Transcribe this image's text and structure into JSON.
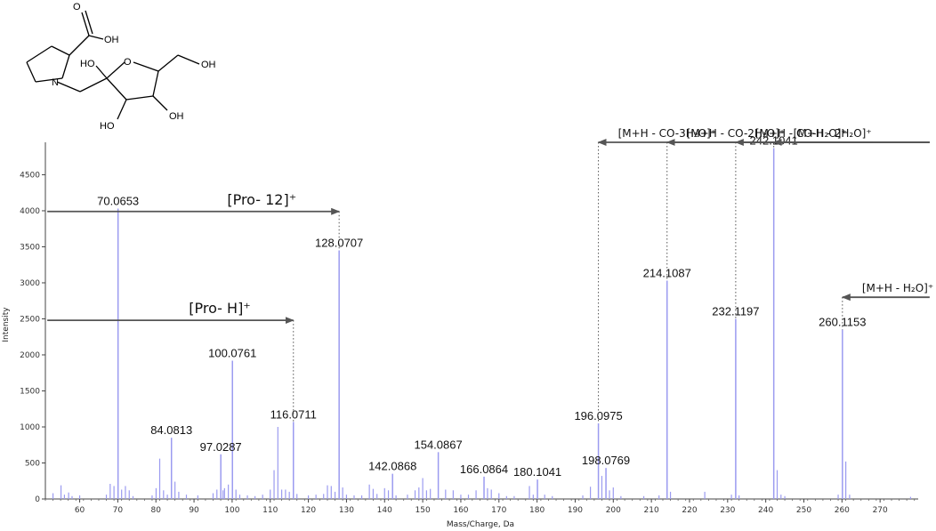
{
  "chart_data": {
    "type": "bar",
    "xlabel": "Mass/Charge, Da",
    "ylabel": "Intensity",
    "xlim": [
      51,
      280
    ],
    "ylim": [
      0,
      4950
    ],
    "x_ticks": [
      60,
      70,
      80,
      90,
      100,
      110,
      120,
      130,
      140,
      150,
      160,
      170,
      180,
      190,
      200,
      210,
      220,
      230,
      240,
      250,
      260,
      270
    ],
    "y_ticks": [
      0,
      500,
      1000,
      1500,
      2000,
      2500,
      3000,
      3500,
      4000,
      4500
    ],
    "bar_color": "#9b9bf0",
    "labeled_peaks": [
      {
        "mz": 70.0653,
        "intensity": 4030,
        "label": "70.0653"
      },
      {
        "mz": 128.0707,
        "intensity": 3450,
        "label": "128.0707"
      },
      {
        "mz": 100.0761,
        "intensity": 1920,
        "label": "100.0761"
      },
      {
        "mz": 116.0711,
        "intensity": 1070,
        "label": "116.0711"
      },
      {
        "mz": 84.0813,
        "intensity": 850,
        "label": "84.0813"
      },
      {
        "mz": 97.0287,
        "intensity": 620,
        "label": "97.0287"
      },
      {
        "mz": 142.0868,
        "intensity": 350,
        "label": "142.0868"
      },
      {
        "mz": 154.0867,
        "intensity": 650,
        "label": "154.0867"
      },
      {
        "mz": 166.0864,
        "intensity": 310,
        "label": "166.0864"
      },
      {
        "mz": 180.1041,
        "intensity": 270,
        "label": "180.1041"
      },
      {
        "mz": 196.0975,
        "intensity": 1050,
        "label": "196.0975"
      },
      {
        "mz": 198.0769,
        "intensity": 430,
        "label": "198.0769"
      },
      {
        "mz": 214.1087,
        "intensity": 3030,
        "label": "214.1087"
      },
      {
        "mz": 232.1197,
        "intensity": 2500,
        "label": "232.1197"
      },
      {
        "mz": 242.1041,
        "intensity": 4870,
        "label": "242.1041"
      },
      {
        "mz": 260.1153,
        "intensity": 2350,
        "label": "260.1153"
      }
    ],
    "minor_peaks": [
      {
        "mz": 53.0,
        "intensity": 80
      },
      {
        "mz": 55.1,
        "intensity": 190
      },
      {
        "mz": 56.0,
        "intensity": 60
      },
      {
        "mz": 57.1,
        "intensity": 90
      },
      {
        "mz": 58.0,
        "intensity": 40
      },
      {
        "mz": 60.0,
        "intensity": 50
      },
      {
        "mz": 67.0,
        "intensity": 60
      },
      {
        "mz": 68.0,
        "intensity": 210
      },
      {
        "mz": 69.0,
        "intensity": 180
      },
      {
        "mz": 71.0,
        "intensity": 130
      },
      {
        "mz": 72.0,
        "intensity": 180
      },
      {
        "mz": 73.0,
        "intensity": 120
      },
      {
        "mz": 74.0,
        "intensity": 40
      },
      {
        "mz": 79.0,
        "intensity": 50
      },
      {
        "mz": 80.05,
        "intensity": 150
      },
      {
        "mz": 81.0,
        "intensity": 560
      },
      {
        "mz": 82.0,
        "intensity": 120
      },
      {
        "mz": 83.0,
        "intensity": 60
      },
      {
        "mz": 85.0,
        "intensity": 240
      },
      {
        "mz": 86.0,
        "intensity": 100
      },
      {
        "mz": 88.0,
        "intensity": 60
      },
      {
        "mz": 91.0,
        "intensity": 50
      },
      {
        "mz": 95.0,
        "intensity": 80
      },
      {
        "mz": 96.0,
        "intensity": 130
      },
      {
        "mz": 97.6,
        "intensity": 120
      },
      {
        "mz": 98.0,
        "intensity": 150
      },
      {
        "mz": 99.0,
        "intensity": 200
      },
      {
        "mz": 101.0,
        "intensity": 130
      },
      {
        "mz": 102.0,
        "intensity": 60
      },
      {
        "mz": 104.0,
        "intensity": 50
      },
      {
        "mz": 106.0,
        "intensity": 40
      },
      {
        "mz": 108.0,
        "intensity": 60
      },
      {
        "mz": 110.0,
        "intensity": 130
      },
      {
        "mz": 111.0,
        "intensity": 400
      },
      {
        "mz": 112.0,
        "intensity": 1000
      },
      {
        "mz": 113.0,
        "intensity": 130
      },
      {
        "mz": 114.0,
        "intensity": 130
      },
      {
        "mz": 115.0,
        "intensity": 100
      },
      {
        "mz": 117.0,
        "intensity": 70
      },
      {
        "mz": 120.0,
        "intensity": 50
      },
      {
        "mz": 122.0,
        "intensity": 60
      },
      {
        "mz": 124.0,
        "intensity": 70
      },
      {
        "mz": 125.0,
        "intensity": 190
      },
      {
        "mz": 126.0,
        "intensity": 180
      },
      {
        "mz": 127.0,
        "intensity": 100
      },
      {
        "mz": 129.0,
        "intensity": 160
      },
      {
        "mz": 130.0,
        "intensity": 60
      },
      {
        "mz": 132.0,
        "intensity": 50
      },
      {
        "mz": 134.0,
        "intensity": 50
      },
      {
        "mz": 136.0,
        "intensity": 200
      },
      {
        "mz": 137.0,
        "intensity": 140
      },
      {
        "mz": 138.0,
        "intensity": 70
      },
      {
        "mz": 140.0,
        "intensity": 150
      },
      {
        "mz": 141.0,
        "intensity": 120
      },
      {
        "mz": 143.0,
        "intensity": 50
      },
      {
        "mz": 146.0,
        "intensity": 60
      },
      {
        "mz": 148.0,
        "intensity": 120
      },
      {
        "mz": 149.0,
        "intensity": 160
      },
      {
        "mz": 150.0,
        "intensity": 290
      },
      {
        "mz": 151.0,
        "intensity": 120
      },
      {
        "mz": 152.0,
        "intensity": 140
      },
      {
        "mz": 156.0,
        "intensity": 130
      },
      {
        "mz": 158.0,
        "intensity": 120
      },
      {
        "mz": 160.0,
        "intensity": 60
      },
      {
        "mz": 162.0,
        "intensity": 60
      },
      {
        "mz": 164.0,
        "intensity": 120
      },
      {
        "mz": 167.0,
        "intensity": 150
      },
      {
        "mz": 168.0,
        "intensity": 130
      },
      {
        "mz": 170.0,
        "intensity": 80
      },
      {
        "mz": 172.0,
        "intensity": 40
      },
      {
        "mz": 174.0,
        "intensity": 40
      },
      {
        "mz": 178.0,
        "intensity": 180
      },
      {
        "mz": 179.0,
        "intensity": 60
      },
      {
        "mz": 182.0,
        "intensity": 60
      },
      {
        "mz": 184.0,
        "intensity": 40
      },
      {
        "mz": 192.0,
        "intensity": 50
      },
      {
        "mz": 194.0,
        "intensity": 170
      },
      {
        "mz": 197.0,
        "intensity": 320
      },
      {
        "mz": 199.0,
        "intensity": 120
      },
      {
        "mz": 200.0,
        "intensity": 160
      },
      {
        "mz": 202.0,
        "intensity": 40
      },
      {
        "mz": 208.0,
        "intensity": 40
      },
      {
        "mz": 212.0,
        "intensity": 50
      },
      {
        "mz": 215.0,
        "intensity": 100
      },
      {
        "mz": 224.0,
        "intensity": 100
      },
      {
        "mz": 231.0,
        "intensity": 60
      },
      {
        "mz": 233.0,
        "intensity": 50
      },
      {
        "mz": 243.0,
        "intensity": 400
      },
      {
        "mz": 244.0,
        "intensity": 60
      },
      {
        "mz": 245.0,
        "intensity": 40
      },
      {
        "mz": 259.0,
        "intensity": 60
      },
      {
        "mz": 261.0,
        "intensity": 520
      },
      {
        "mz": 262.0,
        "intensity": 60
      },
      {
        "mz": 278.0,
        "intensity": 30
      }
    ],
    "annotations": [
      {
        "label": "[M+H - CO-3H₂O]⁺",
        "peak_mz": 196.0975,
        "arrow_from_mz": 268,
        "arrow_intensity": 4950,
        "label_align": "start"
      },
      {
        "label": "[M+H - CO-2H₂O]⁺",
        "peak_mz": 214.1087,
        "arrow_from_mz": 283,
        "arrow_intensity": 4950,
        "label_align": "start"
      },
      {
        "label": "[M+H - CO-H₂O]⁺",
        "peak_mz": 232.1197,
        "arrow_from_mz": 283,
        "arrow_intensity": 4950,
        "label_align": "start"
      },
      {
        "label": "[M+H - 2H₂O]⁺",
        "peak_mz": 242.1041,
        "arrow_from_mz": 283,
        "arrow_intensity": 4950,
        "label_align": "start"
      },
      {
        "label": "[M+H - H₂O]⁺",
        "peak_mz": 260.1153,
        "arrow_from_mz": 283,
        "arrow_intensity": 2800,
        "label_align": "start"
      },
      {
        "label": "[Pro- 12]⁺",
        "peak_mz": 128.0707,
        "arrow_from_mz": 51.5,
        "arrow_intensity": 3990,
        "label_align": "end"
      },
      {
        "label": "[Pro- H]⁺",
        "peak_mz": 116.0711,
        "arrow_from_mz": 51.5,
        "arrow_intensity": 2480,
        "label_align": "end"
      }
    ]
  },
  "molecule": {
    "atoms": [
      "OH",
      "O",
      "N",
      "HO",
      "O",
      "OH",
      "HO",
      "OH"
    ]
  }
}
